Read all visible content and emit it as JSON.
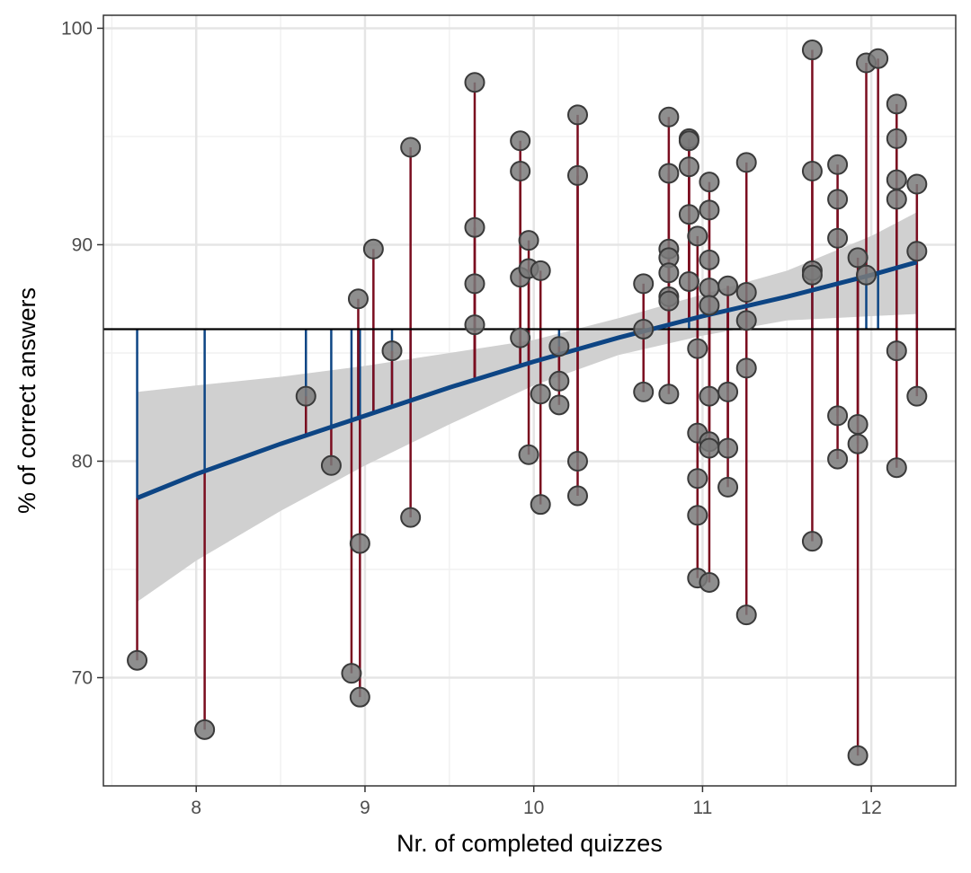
{
  "chart_data": {
    "type": "scatter",
    "xlabel": "Nr. of completed quizzes",
    "ylabel": "% of correct answers",
    "xlim": [
      7.45,
      12.5
    ],
    "ylim": [
      65,
      100.6
    ],
    "x_ticks": [
      8,
      9,
      10,
      11,
      12
    ],
    "y_ticks": [
      70,
      80,
      90,
      100
    ],
    "x_tick_labels": [
      "8",
      "9",
      "10",
      "11",
      "12"
    ],
    "y_tick_labels": [
      "70",
      "80",
      "90",
      "100"
    ],
    "grid": true,
    "mean_line": 86.1,
    "regression": {
      "curve": [
        [
          7.65,
          78.3
        ],
        [
          8.0,
          79.4
        ],
        [
          8.5,
          80.8
        ],
        [
          9.0,
          82.1
        ],
        [
          9.5,
          83.4
        ],
        [
          10.0,
          84.6
        ],
        [
          10.5,
          85.7
        ],
        [
          11.0,
          86.7
        ],
        [
          11.5,
          87.6
        ],
        [
          12.0,
          88.6
        ],
        [
          12.27,
          89.2
        ]
      ],
      "ci_upper": [
        [
          7.65,
          83.2
        ],
        [
          8.0,
          83.5
        ],
        [
          8.5,
          83.9
        ],
        [
          9.0,
          84.4
        ],
        [
          9.5,
          85.0
        ],
        [
          10.0,
          85.6
        ],
        [
          10.5,
          86.6
        ],
        [
          11.0,
          87.7
        ],
        [
          11.5,
          88.8
        ],
        [
          12.0,
          90.4
        ],
        [
          12.27,
          91.5
        ]
      ],
      "ci_lower": [
        [
          7.65,
          73.5
        ],
        [
          8.0,
          75.4
        ],
        [
          8.5,
          77.7
        ],
        [
          9.0,
          79.8
        ],
        [
          9.5,
          81.7
        ],
        [
          10.0,
          83.5
        ],
        [
          10.5,
          84.9
        ],
        [
          11.0,
          85.8
        ],
        [
          11.5,
          86.5
        ],
        [
          12.0,
          86.7
        ],
        [
          12.27,
          86.8
        ]
      ]
    },
    "points": [
      [
        7.65,
        70.8
      ],
      [
        8.05,
        67.6
      ],
      [
        8.65,
        83.0
      ],
      [
        8.8,
        79.8
      ],
      [
        8.92,
        70.2
      ],
      [
        8.96,
        87.5
      ],
      [
        8.97,
        76.2
      ],
      [
        8.97,
        69.1
      ],
      [
        9.05,
        89.8
      ],
      [
        9.16,
        85.1
      ],
      [
        9.27,
        94.5
      ],
      [
        9.27,
        77.4
      ],
      [
        9.65,
        97.5
      ],
      [
        9.65,
        90.8
      ],
      [
        9.65,
        88.2
      ],
      [
        9.65,
        86.3
      ],
      [
        9.92,
        94.8
      ],
      [
        9.92,
        93.4
      ],
      [
        9.92,
        88.5
      ],
      [
        9.92,
        85.7
      ],
      [
        9.97,
        90.2
      ],
      [
        9.97,
        88.9
      ],
      [
        9.97,
        80.3
      ],
      [
        10.04,
        88.8
      ],
      [
        10.04,
        83.1
      ],
      [
        10.04,
        78.0
      ],
      [
        10.15,
        85.3
      ],
      [
        10.15,
        83.7
      ],
      [
        10.15,
        82.6
      ],
      [
        10.26,
        96.0
      ],
      [
        10.26,
        93.2
      ],
      [
        10.26,
        80.0
      ],
      [
        10.26,
        78.4
      ],
      [
        10.65,
        88.2
      ],
      [
        10.65,
        86.1
      ],
      [
        10.65,
        83.2
      ],
      [
        10.8,
        95.9
      ],
      [
        10.8,
        93.3
      ],
      [
        10.8,
        89.8
      ],
      [
        10.8,
        89.4
      ],
      [
        10.8,
        88.7
      ],
      [
        10.8,
        87.6
      ],
      [
        10.8,
        87.4
      ],
      [
        10.8,
        83.1
      ],
      [
        10.92,
        94.9
      ],
      [
        10.92,
        94.8
      ],
      [
        10.92,
        93.6
      ],
      [
        10.92,
        91.4
      ],
      [
        10.92,
        88.3
      ],
      [
        10.97,
        90.4
      ],
      [
        10.97,
        85.2
      ],
      [
        10.97,
        81.3
      ],
      [
        10.97,
        79.2
      ],
      [
        10.97,
        77.5
      ],
      [
        10.97,
        74.6
      ],
      [
        11.04,
        92.9
      ],
      [
        11.04,
        91.6
      ],
      [
        11.04,
        89.3
      ],
      [
        11.04,
        88.0
      ],
      [
        11.04,
        87.2
      ],
      [
        11.04,
        83.0
      ],
      [
        11.04,
        80.9
      ],
      [
        11.04,
        80.6
      ],
      [
        11.04,
        74.4
      ],
      [
        11.15,
        88.1
      ],
      [
        11.15,
        83.2
      ],
      [
        11.15,
        80.6
      ],
      [
        11.15,
        78.8
      ],
      [
        11.26,
        93.8
      ],
      [
        11.26,
        87.8
      ],
      [
        11.26,
        86.5
      ],
      [
        11.26,
        84.3
      ],
      [
        11.26,
        72.9
      ],
      [
        11.65,
        99.0
      ],
      [
        11.65,
        93.4
      ],
      [
        11.65,
        88.8
      ],
      [
        11.65,
        88.6
      ],
      [
        11.65,
        76.3
      ],
      [
        11.8,
        93.7
      ],
      [
        11.8,
        92.1
      ],
      [
        11.8,
        90.3
      ],
      [
        11.8,
        82.1
      ],
      [
        11.8,
        80.1
      ],
      [
        11.92,
        89.4
      ],
      [
        11.92,
        81.7
      ],
      [
        11.92,
        80.8
      ],
      [
        11.92,
        66.4
      ],
      [
        11.97,
        98.4
      ],
      [
        11.97,
        88.6
      ],
      [
        12.04,
        98.6
      ],
      [
        12.15,
        96.5
      ],
      [
        12.15,
        94.9
      ],
      [
        12.15,
        93.0
      ],
      [
        12.15,
        92.1
      ],
      [
        12.15,
        85.1
      ],
      [
        12.15,
        79.7
      ],
      [
        12.27,
        92.8
      ],
      [
        12.27,
        89.7
      ],
      [
        12.27,
        83.0
      ]
    ],
    "colors": {
      "point_fill": "#7a7a7a",
      "point_stroke": "#3a3a3a",
      "residual": "#7a0d1f",
      "explained": "#0d4584",
      "fit_line": "#0d4584",
      "ci_band": "#d0d0d0",
      "mean_line": "#000000",
      "grid_major": "#e5e5e5",
      "grid_minor": "#f1f1f1",
      "panel_border": "#333333"
    }
  }
}
